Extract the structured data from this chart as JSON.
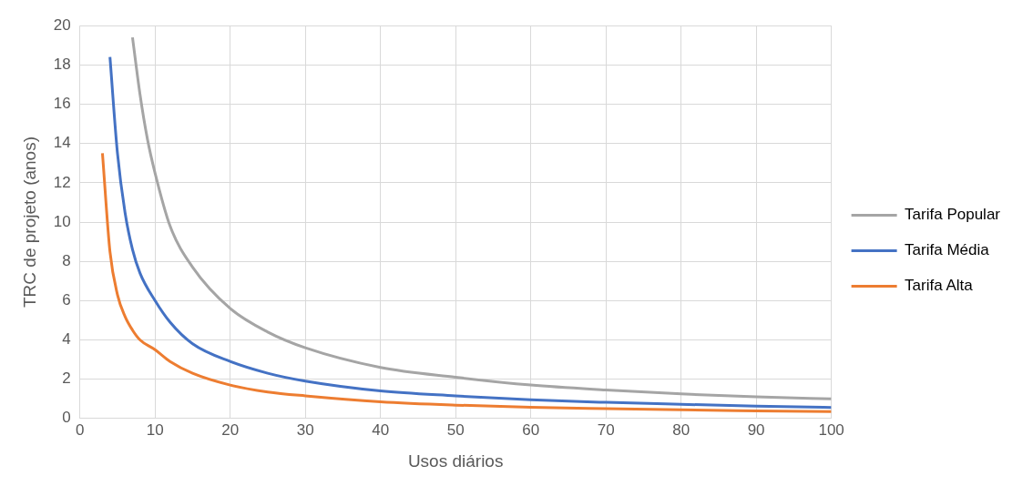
{
  "chart_data": {
    "type": "line",
    "xlabel": "Usos diários",
    "ylabel": "TRC de projeto (anos)",
    "xlim": [
      0,
      100
    ],
    "xticks": [
      0,
      10,
      20,
      30,
      40,
      50,
      60,
      70,
      80,
      90,
      100
    ],
    "ylim": [
      0,
      20
    ],
    "yticks": [
      0,
      2,
      4,
      6,
      8,
      10,
      12,
      14,
      16,
      18,
      20
    ],
    "grid": true,
    "legend": "right",
    "marker": "none",
    "line_style": "solid",
    "series": [
      {
        "name": "Tarifa Popular",
        "color": "#a5a5a5",
        "x": [
          7,
          8,
          9,
          10,
          12,
          15,
          20,
          25,
          30,
          40,
          50,
          60,
          70,
          80,
          90,
          100
        ],
        "values": [
          19.4,
          16.5,
          14.2,
          12.5,
          9.8,
          7.7,
          5.6,
          4.4,
          3.6,
          2.6,
          2.1,
          1.7,
          1.45,
          1.25,
          1.1,
          1.0
        ]
      },
      {
        "name": "Tarifa Média",
        "color": "#4472c4",
        "x": [
          4,
          5,
          6,
          7,
          8,
          10,
          12,
          15,
          20,
          25,
          30,
          40,
          50,
          60,
          70,
          80,
          90,
          100
        ],
        "values": [
          18.4,
          13.5,
          10.5,
          8.6,
          7.4,
          6.0,
          4.9,
          3.8,
          2.9,
          2.3,
          1.9,
          1.4,
          1.15,
          0.95,
          0.82,
          0.72,
          0.63,
          0.56
        ]
      },
      {
        "name": "Tarifa Alta",
        "color": "#ed7d31",
        "x": [
          3,
          4,
          5,
          6,
          7,
          8,
          10,
          12,
          15,
          20,
          25,
          30,
          40,
          50,
          60,
          70,
          80,
          90,
          100
        ],
        "values": [
          13.5,
          8.5,
          6.3,
          5.2,
          4.5,
          4.0,
          3.5,
          2.9,
          2.3,
          1.7,
          1.35,
          1.15,
          0.85,
          0.68,
          0.57,
          0.5,
          0.44,
          0.39,
          0.35
        ]
      }
    ]
  }
}
